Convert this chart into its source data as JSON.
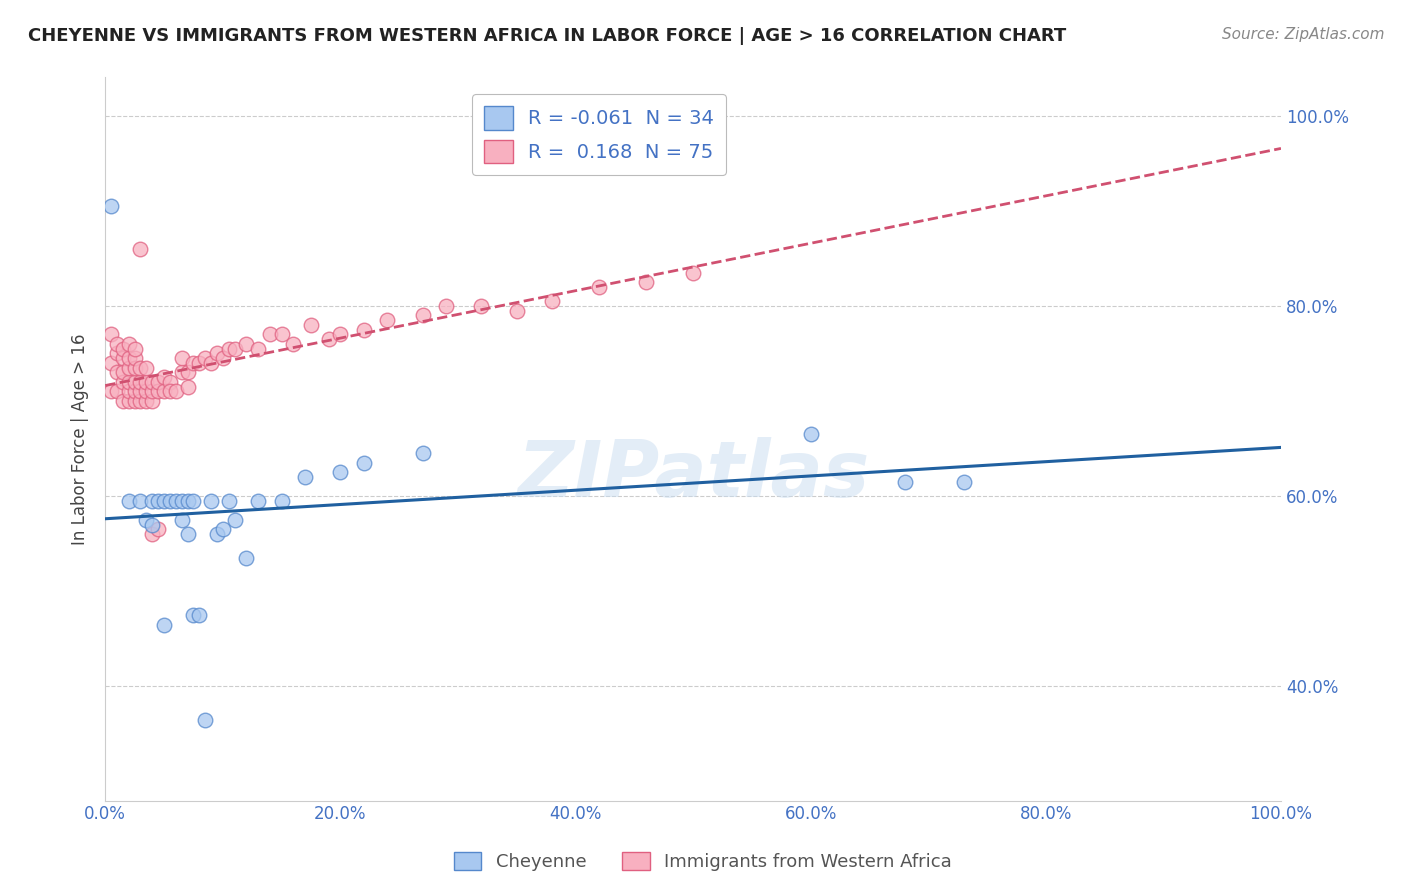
{
  "title": "CHEYENNE VS IMMIGRANTS FROM WESTERN AFRICA IN LABOR FORCE | AGE > 16 CORRELATION CHART",
  "source": "Source: ZipAtlas.com",
  "ylabel": "In Labor Force | Age > 16",
  "xlim": [
    0,
    1.0
  ],
  "ylim": [
    0.28,
    1.04
  ],
  "xticks": [
    0.0,
    0.2,
    0.4,
    0.6,
    0.8,
    1.0
  ],
  "yticks": [
    0.4,
    0.6,
    0.8,
    1.0
  ],
  "legend_blue_r": "-0.061",
  "legend_blue_n": "34",
  "legend_pink_r": "0.168",
  "legend_pink_n": "75",
  "blue_scatter_color": "#A8C8F0",
  "blue_edge_color": "#5588CC",
  "pink_scatter_color": "#F8B0C0",
  "pink_edge_color": "#E06080",
  "blue_line_color": "#2060A0",
  "pink_line_color": "#D05070",
  "tick_color": "#4472C4",
  "watermark": "ZIPatlas",
  "cheyenne_x": [
    0.005,
    0.02,
    0.03,
    0.035,
    0.04,
    0.04,
    0.045,
    0.05,
    0.05,
    0.055,
    0.06,
    0.065,
    0.065,
    0.07,
    0.07,
    0.075,
    0.075,
    0.08,
    0.085,
    0.09,
    0.095,
    0.1,
    0.105,
    0.11,
    0.12,
    0.13,
    0.15,
    0.17,
    0.2,
    0.22,
    0.27,
    0.6,
    0.68,
    0.73
  ],
  "cheyenne_y": [
    0.905,
    0.595,
    0.595,
    0.575,
    0.595,
    0.57,
    0.595,
    0.595,
    0.465,
    0.595,
    0.595,
    0.595,
    0.575,
    0.595,
    0.56,
    0.595,
    0.475,
    0.475,
    0.365,
    0.595,
    0.56,
    0.565,
    0.595,
    0.575,
    0.535,
    0.595,
    0.595,
    0.62,
    0.625,
    0.635,
    0.645,
    0.665,
    0.615,
    0.615
  ],
  "pink_x": [
    0.005,
    0.005,
    0.005,
    0.01,
    0.01,
    0.01,
    0.01,
    0.015,
    0.015,
    0.015,
    0.015,
    0.015,
    0.02,
    0.02,
    0.02,
    0.02,
    0.02,
    0.02,
    0.025,
    0.025,
    0.025,
    0.025,
    0.025,
    0.025,
    0.03,
    0.03,
    0.03,
    0.03,
    0.03,
    0.035,
    0.035,
    0.035,
    0.035,
    0.04,
    0.04,
    0.04,
    0.04,
    0.045,
    0.045,
    0.045,
    0.05,
    0.05,
    0.055,
    0.055,
    0.06,
    0.065,
    0.065,
    0.07,
    0.07,
    0.075,
    0.08,
    0.085,
    0.09,
    0.095,
    0.1,
    0.105,
    0.11,
    0.12,
    0.13,
    0.14,
    0.15,
    0.16,
    0.175,
    0.19,
    0.2,
    0.22,
    0.24,
    0.27,
    0.29,
    0.32,
    0.35,
    0.38,
    0.42,
    0.46,
    0.5
  ],
  "pink_y": [
    0.71,
    0.74,
    0.77,
    0.71,
    0.73,
    0.75,
    0.76,
    0.7,
    0.72,
    0.73,
    0.745,
    0.755,
    0.7,
    0.71,
    0.72,
    0.735,
    0.745,
    0.76,
    0.7,
    0.71,
    0.72,
    0.735,
    0.745,
    0.755,
    0.7,
    0.71,
    0.72,
    0.735,
    0.86,
    0.7,
    0.71,
    0.72,
    0.735,
    0.7,
    0.71,
    0.72,
    0.56,
    0.71,
    0.72,
    0.565,
    0.71,
    0.725,
    0.72,
    0.71,
    0.71,
    0.73,
    0.745,
    0.73,
    0.715,
    0.74,
    0.74,
    0.745,
    0.74,
    0.75,
    0.745,
    0.755,
    0.755,
    0.76,
    0.755,
    0.77,
    0.77,
    0.76,
    0.78,
    0.765,
    0.77,
    0.775,
    0.785,
    0.79,
    0.8,
    0.8,
    0.795,
    0.805,
    0.82,
    0.825,
    0.835
  ]
}
